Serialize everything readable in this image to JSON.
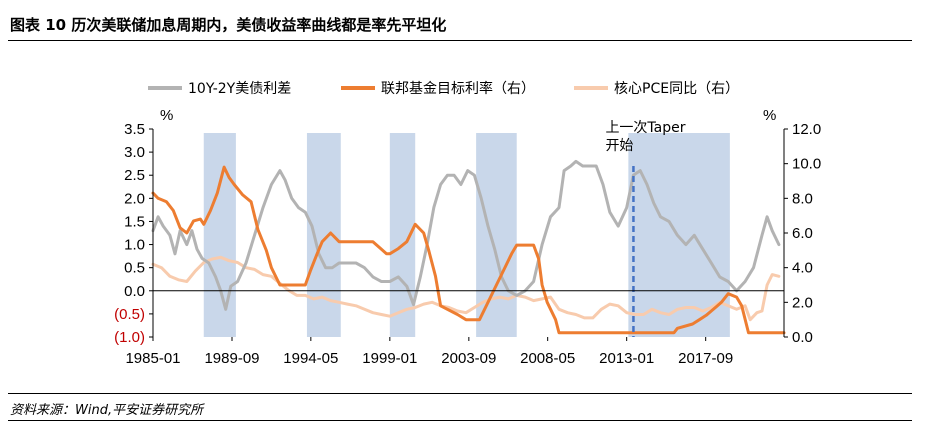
{
  "figure": {
    "title": "图表 10    历次美联储加息周期内，美债收益率曲线都是率先平坦化",
    "source": "资料来源：Wind,平安证券研究所"
  },
  "chart_data": {
    "type": "line",
    "left_unit": "%",
    "right_unit": "%",
    "left_axis": {
      "range": [
        -1.0,
        3.5
      ],
      "ticks": [
        3.5,
        3.0,
        2.5,
        2.0,
        1.5,
        1.0,
        0.5,
        0.0,
        -0.5,
        -1.0
      ],
      "tick_labels": [
        "3.5",
        "3.0",
        "2.5",
        "2.0",
        "1.5",
        "1.0",
        "0.5",
        "0.0",
        "(0.5)",
        "(1.0)"
      ]
    },
    "right_axis": {
      "range": [
        0,
        12
      ],
      "ticks": [
        12,
        10,
        8,
        6,
        4,
        2,
        0
      ],
      "tick_labels": [
        "12.0",
        "10.0",
        "8.0",
        "6.0",
        "4.0",
        "2.0",
        "0.0"
      ]
    },
    "x_axis": {
      "range": [
        1985.0,
        2022.3
      ],
      "ticks": [
        1985.0,
        1989.67,
        1994.33,
        1999.0,
        2003.67,
        2008.33,
        2013.0,
        2017.67
      ],
      "tick_labels": [
        "1985-01",
        "1989-09",
        "1994-05",
        "1999-01",
        "2003-09",
        "2008-05",
        "2013-01",
        "2017-09"
      ]
    },
    "shaded_periods": [
      [
        1988.0,
        1989.9
      ],
      [
        1994.1,
        1996.1
      ],
      [
        1999.0,
        2000.5
      ],
      [
        2004.1,
        2006.5
      ],
      [
        2013.1,
        2019.1
      ]
    ],
    "annotation": {
      "text_line1": "上一次Taper",
      "text_line2": "开始",
      "x": 2013.4
    },
    "legend": [
      "10Y-2Y美债利差",
      "联邦基金目标利率（右）",
      "核心PCE同比（右）"
    ],
    "colors": {
      "spread": "#b3b3b3",
      "fedfunds": "#ed7d31",
      "pce": "#f8cbad",
      "shade": "#c9d7ea",
      "taper_line": "#4472c4"
    },
    "series": [
      {
        "name": "10Y-2Y美债利差",
        "axis": "left",
        "points": [
          [
            1985.0,
            1.3
          ],
          [
            1985.3,
            1.6
          ],
          [
            1985.6,
            1.4
          ],
          [
            1986.0,
            1.2
          ],
          [
            1986.3,
            0.8
          ],
          [
            1986.6,
            1.3
          ],
          [
            1987.0,
            1.0
          ],
          [
            1987.3,
            1.3
          ],
          [
            1987.6,
            0.9
          ],
          [
            1987.9,
            0.7
          ],
          [
            1988.3,
            0.6
          ],
          [
            1988.7,
            0.3
          ],
          [
            1989.0,
            0.0
          ],
          [
            1989.3,
            -0.4
          ],
          [
            1989.6,
            0.1
          ],
          [
            1990.0,
            0.2
          ],
          [
            1990.5,
            0.6
          ],
          [
            1991.0,
            1.2
          ],
          [
            1991.5,
            1.8
          ],
          [
            1992.0,
            2.3
          ],
          [
            1992.5,
            2.6
          ],
          [
            1992.8,
            2.4
          ],
          [
            1993.2,
            2.0
          ],
          [
            1993.6,
            1.8
          ],
          [
            1994.0,
            1.7
          ],
          [
            1994.4,
            1.4
          ],
          [
            1994.8,
            0.8
          ],
          [
            1995.2,
            0.5
          ],
          [
            1995.6,
            0.5
          ],
          [
            1996.0,
            0.6
          ],
          [
            1996.5,
            0.6
          ],
          [
            1997.0,
            0.6
          ],
          [
            1997.5,
            0.5
          ],
          [
            1998.0,
            0.3
          ],
          [
            1998.5,
            0.2
          ],
          [
            1999.0,
            0.2
          ],
          [
            1999.5,
            0.3
          ],
          [
            2000.0,
            0.1
          ],
          [
            2000.4,
            -0.3
          ],
          [
            2000.8,
            0.3
          ],
          [
            2001.2,
            1.0
          ],
          [
            2001.6,
            1.8
          ],
          [
            2002.0,
            2.3
          ],
          [
            2002.4,
            2.5
          ],
          [
            2002.8,
            2.5
          ],
          [
            2003.2,
            2.3
          ],
          [
            2003.6,
            2.6
          ],
          [
            2004.0,
            2.5
          ],
          [
            2004.4,
            2.0
          ],
          [
            2004.8,
            1.4
          ],
          [
            2005.2,
            0.9
          ],
          [
            2005.6,
            0.3
          ],
          [
            2006.0,
            0.0
          ],
          [
            2006.5,
            -0.1
          ],
          [
            2007.0,
            0.0
          ],
          [
            2007.5,
            0.2
          ],
          [
            2008.0,
            1.0
          ],
          [
            2008.5,
            1.6
          ],
          [
            2009.0,
            1.8
          ],
          [
            2009.3,
            2.6
          ],
          [
            2009.7,
            2.7
          ],
          [
            2010.0,
            2.8
          ],
          [
            2010.4,
            2.7
          ],
          [
            2010.8,
            2.7
          ],
          [
            2011.2,
            2.7
          ],
          [
            2011.6,
            2.3
          ],
          [
            2012.0,
            1.7
          ],
          [
            2012.5,
            1.4
          ],
          [
            2013.0,
            1.8
          ],
          [
            2013.4,
            2.5
          ],
          [
            2013.8,
            2.6
          ],
          [
            2014.2,
            2.3
          ],
          [
            2014.6,
            1.9
          ],
          [
            2015.0,
            1.6
          ],
          [
            2015.5,
            1.5
          ],
          [
            2016.0,
            1.2
          ],
          [
            2016.5,
            1.0
          ],
          [
            2017.0,
            1.2
          ],
          [
            2017.5,
            0.9
          ],
          [
            2018.0,
            0.6
          ],
          [
            2018.5,
            0.3
          ],
          [
            2019.0,
            0.2
          ],
          [
            2019.5,
            0.0
          ],
          [
            2020.0,
            0.2
          ],
          [
            2020.5,
            0.5
          ],
          [
            2021.0,
            1.2
          ],
          [
            2021.3,
            1.6
          ],
          [
            2021.6,
            1.3
          ],
          [
            2022.0,
            1.0
          ]
        ]
      },
      {
        "name": "联邦基金目标利率（右）",
        "axis": "right",
        "points": [
          [
            1985.0,
            8.3
          ],
          [
            1985.3,
            8.0
          ],
          [
            1985.8,
            7.8
          ],
          [
            1986.2,
            7.3
          ],
          [
            1986.6,
            6.3
          ],
          [
            1987.0,
            6.0
          ],
          [
            1987.4,
            6.7
          ],
          [
            1987.8,
            6.8
          ],
          [
            1988.0,
            6.5
          ],
          [
            1988.4,
            7.3
          ],
          [
            1988.8,
            8.3
          ],
          [
            1989.2,
            9.8
          ],
          [
            1989.5,
            9.2
          ],
          [
            1989.8,
            8.8
          ],
          [
            1990.3,
            8.2
          ],
          [
            1990.8,
            7.8
          ],
          [
            1991.2,
            6.2
          ],
          [
            1991.7,
            5.0
          ],
          [
            1992.0,
            4.0
          ],
          [
            1992.5,
            3.0
          ],
          [
            1993.0,
            3.0
          ],
          [
            1994.0,
            3.0
          ],
          [
            1994.3,
            3.8
          ],
          [
            1994.7,
            4.8
          ],
          [
            1995.0,
            5.5
          ],
          [
            1995.5,
            6.0
          ],
          [
            1996.0,
            5.5
          ],
          [
            1997.0,
            5.5
          ],
          [
            1998.0,
            5.5
          ],
          [
            1998.8,
            4.8
          ],
          [
            1999.0,
            4.8
          ],
          [
            1999.5,
            5.1
          ],
          [
            2000.0,
            5.5
          ],
          [
            2000.5,
            6.5
          ],
          [
            2001.0,
            6.0
          ],
          [
            2001.3,
            5.0
          ],
          [
            2001.7,
            3.5
          ],
          [
            2002.0,
            1.8
          ],
          [
            2003.0,
            1.3
          ],
          [
            2003.5,
            1.0
          ],
          [
            2004.3,
            1.0
          ],
          [
            2004.7,
            1.8
          ],
          [
            2005.2,
            2.8
          ],
          [
            2005.7,
            3.8
          ],
          [
            2006.2,
            4.8
          ],
          [
            2006.5,
            5.3
          ],
          [
            2007.5,
            5.3
          ],
          [
            2007.8,
            4.5
          ],
          [
            2008.0,
            3.0
          ],
          [
            2008.3,
            2.0
          ],
          [
            2008.8,
            1.0
          ],
          [
            2009.0,
            0.25
          ],
          [
            2015.8,
            0.25
          ],
          [
            2016.0,
            0.5
          ],
          [
            2016.9,
            0.75
          ],
          [
            2017.3,
            1.0
          ],
          [
            2017.7,
            1.25
          ],
          [
            2018.0,
            1.5
          ],
          [
            2018.3,
            1.75
          ],
          [
            2018.6,
            2.0
          ],
          [
            2019.0,
            2.5
          ],
          [
            2019.5,
            2.3
          ],
          [
            2019.8,
            1.8
          ],
          [
            2020.2,
            0.25
          ],
          [
            2022.3,
            0.25
          ]
        ]
      },
      {
        "name": "核心PCE同比（右）",
        "axis": "right",
        "points": [
          [
            1985.0,
            4.2
          ],
          [
            1985.5,
            4.0
          ],
          [
            1986.0,
            3.5
          ],
          [
            1986.5,
            3.3
          ],
          [
            1987.0,
            3.2
          ],
          [
            1987.5,
            3.8
          ],
          [
            1988.0,
            4.3
          ],
          [
            1988.5,
            4.5
          ],
          [
            1989.0,
            4.6
          ],
          [
            1989.5,
            4.4
          ],
          [
            1990.0,
            4.3
          ],
          [
            1990.5,
            4.0
          ],
          [
            1991.0,
            3.9
          ],
          [
            1991.5,
            3.6
          ],
          [
            1992.0,
            3.5
          ],
          [
            1992.5,
            3.1
          ],
          [
            1993.0,
            2.7
          ],
          [
            1993.5,
            2.4
          ],
          [
            1994.0,
            2.4
          ],
          [
            1994.5,
            2.2
          ],
          [
            1995.0,
            2.3
          ],
          [
            1995.5,
            2.1
          ],
          [
            1996.0,
            2.0
          ],
          [
            1996.5,
            1.9
          ],
          [
            1997.0,
            1.8
          ],
          [
            1997.5,
            1.6
          ],
          [
            1998.0,
            1.4
          ],
          [
            1998.5,
            1.3
          ],
          [
            1999.0,
            1.2
          ],
          [
            1999.5,
            1.4
          ],
          [
            2000.0,
            1.6
          ],
          [
            2000.5,
            1.7
          ],
          [
            2001.0,
            1.9
          ],
          [
            2001.5,
            2.0
          ],
          [
            2002.0,
            1.8
          ],
          [
            2002.5,
            1.7
          ],
          [
            2003.0,
            1.5
          ],
          [
            2003.5,
            1.4
          ],
          [
            2004.0,
            1.7
          ],
          [
            2004.5,
            2.0
          ],
          [
            2005.0,
            2.2
          ],
          [
            2005.5,
            2.3
          ],
          [
            2006.0,
            2.2
          ],
          [
            2006.5,
            2.4
          ],
          [
            2007.0,
            2.3
          ],
          [
            2007.5,
            2.1
          ],
          [
            2008.0,
            2.2
          ],
          [
            2008.5,
            2.3
          ],
          [
            2009.0,
            1.6
          ],
          [
            2009.5,
            1.4
          ],
          [
            2010.0,
            1.3
          ],
          [
            2010.5,
            1.1
          ],
          [
            2011.0,
            1.1
          ],
          [
            2011.5,
            1.6
          ],
          [
            2012.0,
            1.9
          ],
          [
            2012.5,
            1.8
          ],
          [
            2013.0,
            1.4
          ],
          [
            2013.5,
            1.3
          ],
          [
            2014.0,
            1.3
          ],
          [
            2014.5,
            1.6
          ],
          [
            2015.0,
            1.4
          ],
          [
            2015.5,
            1.3
          ],
          [
            2016.0,
            1.6
          ],
          [
            2016.5,
            1.7
          ],
          [
            2017.0,
            1.7
          ],
          [
            2017.5,
            1.5
          ],
          [
            2018.0,
            1.7
          ],
          [
            2018.5,
            2.0
          ],
          [
            2019.0,
            1.8
          ],
          [
            2019.5,
            1.6
          ],
          [
            2020.0,
            1.8
          ],
          [
            2020.3,
            1.0
          ],
          [
            2020.7,
            1.4
          ],
          [
            2021.0,
            1.5
          ],
          [
            2021.3,
            3.0
          ],
          [
            2021.6,
            3.6
          ],
          [
            2022.0,
            3.5
          ]
        ]
      }
    ]
  }
}
